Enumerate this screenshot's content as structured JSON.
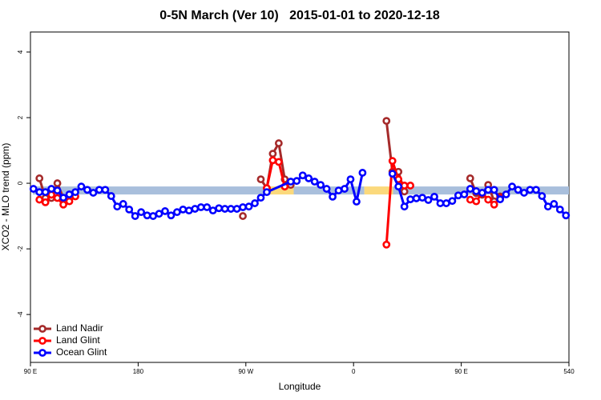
{
  "chart_data": {
    "type": "line",
    "title": "0-5N March (Ver 10)   2015-01-01 to 2020-12-18",
    "x_label": "Longitude",
    "y_label": "XCO2 - MLO trend (ppm)",
    "xlim": [
      90,
      540
    ],
    "ylim": [
      -5.46,
      4.61
    ],
    "xticks": [
      {
        "value": 90,
        "label": "90 E"
      },
      180,
      {
        "value": 270,
        "label": "90 W"
      },
      {
        "value": 360,
        "label": "0"
      },
      {
        "value": 450,
        "label": "90 E"
      },
      540
    ],
    "yticks": [
      -4,
      -2,
      0,
      2,
      4
    ],
    "legend": "bottom-left",
    "bands": {
      "y": -0.22,
      "segments": [
        {
          "xlim": [
            92,
            287
          ],
          "color": "#a9bfdc"
        },
        {
          "xlim": [
            287,
            310
          ],
          "color": "#fbd97c"
        },
        {
          "xlim": [
            310,
            369
          ],
          "color": "#a9bfdc"
        },
        {
          "xlim": [
            369,
            393
          ],
          "color": "#fbd97c"
        },
        {
          "xlim": [
            393,
            540
          ],
          "color": "#a9bfdc"
        }
      ]
    },
    "series": [
      {
        "name": "Land Nadir",
        "color": "#a52a2a",
        "x": [
          97.5,
          102.5,
          107.5,
          112.5,
          117.5,
          200,
          267.5,
          275,
          282.5,
          287.5,
          292.5,
          297.5,
          302.5,
          307.5,
          340,
          387.5,
          392.5,
          397.5,
          402.5,
          430,
          457.5,
          462.5,
          467.5,
          472.5,
          477.5,
          482.5
        ],
        "values": [
          0.15,
          -0.45,
          -0.45,
          0,
          -0.45,
          null,
          -1.0,
          null,
          0.12,
          -0.15,
          0.9,
          1.22,
          0.12,
          -0.05,
          null,
          1.9,
          0.35,
          0.35,
          -0.25,
          null,
          0.15,
          -0.3,
          -0.35,
          -0.05,
          -0.55,
          -0.4
        ]
      },
      {
        "name": "Land Glint",
        "color": "#ff0000",
        "x": [
          97.5,
          102.5,
          107.5,
          112.5,
          117.5,
          122.5,
          127.5,
          200,
          287.5,
          292.5,
          297.5,
          302.5,
          340,
          387.5,
          392.5,
          397.5,
          402.5,
          407.5,
          430,
          457.5,
          462.5,
          467.5,
          472.5,
          477.5,
          482.5
        ],
        "values": [
          -0.5,
          -0.58,
          -0.35,
          -0.45,
          -0.65,
          -0.55,
          -0.4,
          null,
          -0.15,
          0.7,
          0.65,
          -0.1,
          null,
          -1.87,
          0.68,
          0.12,
          -0.07,
          -0.07,
          null,
          -0.5,
          -0.55,
          -0.3,
          -0.5,
          -0.65,
          -0.45
        ]
      },
      {
        "name": "Ocean Glint",
        "color": "#0000ff",
        "x": [
          92.5,
          97.5,
          102.5,
          107.5,
          112.5,
          117.5,
          122.5,
          127.5,
          132.5,
          137.5,
          142.5,
          147.5,
          152.5,
          157.5,
          162.5,
          167.5,
          172.5,
          177.5,
          182.5,
          187.5,
          192.5,
          197.5,
          202.5,
          207.5,
          212.5,
          217.5,
          222.5,
          227.5,
          232.5,
          237.5,
          242.5,
          247.5,
          252.5,
          257.5,
          262.5,
          267.5,
          272.5,
          277.5,
          282.5,
          287.5,
          307.5,
          312.5,
          317.5,
          322.5,
          327.5,
          332.5,
          337.5,
          342.5,
          347.5,
          352.5,
          357.5,
          362.5,
          367.5,
          380,
          392.5,
          397.5,
          402.5,
          407.5,
          412.5,
          417.5,
          422.5,
          427.5,
          432.5,
          437.5,
          442.5,
          447.5,
          452.5,
          457.5,
          462.5,
          467.5,
          472.5,
          477.5,
          482.5,
          487.5,
          492.5,
          497.5,
          502.5,
          507.5,
          512.5,
          517.5,
          522.5,
          527.5,
          532.5,
          537.5
        ],
        "values": [
          -0.17,
          -0.27,
          -0.27,
          -0.17,
          -0.22,
          -0.44,
          -0.34,
          -0.27,
          -0.1,
          -0.2,
          -0.29,
          -0.2,
          -0.2,
          -0.39,
          -0.71,
          -0.63,
          -0.8,
          -1.0,
          -0.88,
          -0.98,
          -1.0,
          -0.93,
          -0.85,
          -0.98,
          -0.88,
          -0.8,
          -0.83,
          -0.78,
          -0.73,
          -0.73,
          -0.83,
          -0.76,
          -0.78,
          -0.78,
          -0.78,
          -0.73,
          -0.71,
          -0.61,
          -0.44,
          -0.27,
          0.05,
          0.07,
          0.24,
          0.15,
          0.05,
          -0.05,
          -0.17,
          -0.41,
          -0.22,
          -0.17,
          0.12,
          -0.56,
          0.32,
          null,
          0.29,
          -0.1,
          -0.71,
          -0.49,
          -0.46,
          -0.44,
          -0.51,
          -0.41,
          -0.61,
          -0.61,
          -0.54,
          -0.37,
          -0.34,
          -0.17,
          -0.24,
          -0.29,
          -0.2,
          -0.2,
          -0.49,
          -0.34,
          -0.1,
          -0.2,
          -0.29,
          -0.2,
          -0.2,
          -0.39,
          -0.71,
          -0.63,
          -0.8,
          -0.98
        ]
      }
    ]
  }
}
